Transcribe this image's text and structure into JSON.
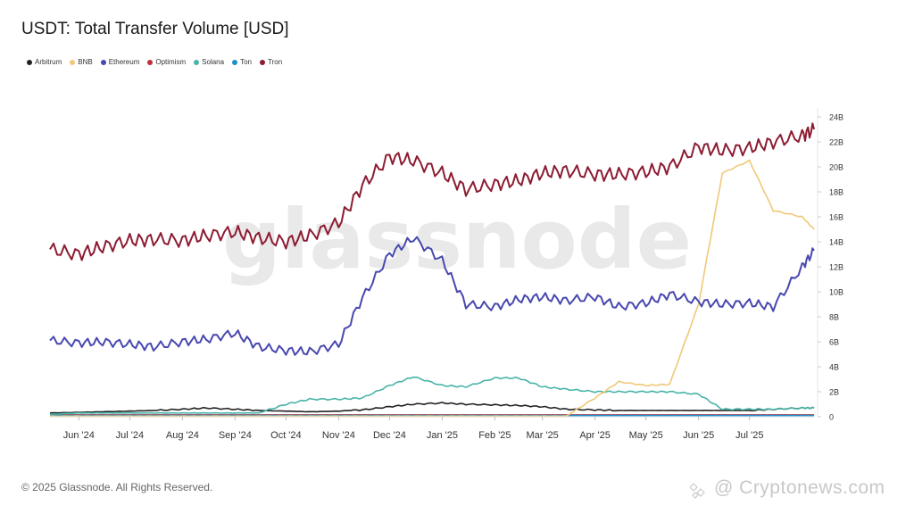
{
  "title": "USDT: Total Transfer Volume [USD]",
  "footer": "© 2025 Glassnode. All Rights Reserved.",
  "watermark": "glassnode",
  "watermark_bottom": "@ Cryptonews.com",
  "chart_data": {
    "type": "line",
    "title": "USDT: Total Transfer Volume [USD]",
    "legend_position": "top-left",
    "grid": false,
    "x": [
      "2024-05-15",
      "2024-06-01",
      "2024-06-15",
      "2024-07-01",
      "2024-07-15",
      "2024-08-01",
      "2024-08-15",
      "2024-09-01",
      "2024-09-15",
      "2024-10-01",
      "2024-10-15",
      "2024-11-01",
      "2024-11-15",
      "2024-12-01",
      "2024-12-15",
      "2025-01-01",
      "2025-01-15",
      "2025-02-01",
      "2025-02-15",
      "2025-03-01",
      "2025-03-15",
      "2025-04-01",
      "2025-04-15",
      "2025-05-01",
      "2025-05-15",
      "2025-06-01",
      "2025-06-15",
      "2025-07-01",
      "2025-07-15",
      "2025-08-01",
      "2025-08-08"
    ],
    "x_ticks": [
      "Jun '24",
      "Jul '24",
      "Aug '24",
      "Sep '24",
      "Oct '24",
      "Nov '24",
      "Dec '24",
      "Jan '25",
      "Feb '25",
      "Mar '25",
      "Apr '25",
      "May '25",
      "Jun '25",
      "Jul '25"
    ],
    "x_tick_dates": [
      "2024-06-01",
      "2024-07-01",
      "2024-08-01",
      "2024-09-01",
      "2024-10-01",
      "2024-11-01",
      "2024-12-01",
      "2025-01-01",
      "2025-02-01",
      "2025-03-01",
      "2025-04-01",
      "2025-05-01",
      "2025-06-01",
      "2025-07-01"
    ],
    "x_range": [
      "2024-05-15",
      "2025-08-08"
    ],
    "y_ticks": [
      "0",
      "2B",
      "4B",
      "6B",
      "8B",
      "10B",
      "12B",
      "14B",
      "16B",
      "18B",
      "20B",
      "22B",
      "24B"
    ],
    "ylim": [
      0,
      24
    ],
    "y_unit": "B",
    "y_axis_side": "right",
    "series": [
      {
        "name": "Arbitrum",
        "color": "#222222",
        "values": [
          0.3,
          0.35,
          0.4,
          0.45,
          0.5,
          0.6,
          0.7,
          0.6,
          0.5,
          0.45,
          0.4,
          0.45,
          0.55,
          0.8,
          1.0,
          1.1,
          1.0,
          0.95,
          0.9,
          0.8,
          0.6,
          0.55,
          0.5,
          0.5,
          0.5,
          0.5,
          0.5,
          0.5,
          0.6,
          0.7,
          0.7
        ]
      },
      {
        "name": "BNB",
        "color": "#f0c878",
        "values": [
          0.05,
          0.05,
          0.05,
          0.05,
          0.05,
          0.05,
          0.05,
          0.05,
          0.05,
          0.05,
          0.05,
          0.05,
          0.05,
          0.05,
          0.05,
          0.05,
          0.05,
          0.05,
          0.05,
          0.05,
          0.05,
          1.5,
          2.8,
          2.5,
          2.6,
          9.0,
          19.5,
          20.5,
          16.5,
          16.0,
          15.0
        ]
      },
      {
        "name": "Ethereum",
        "color": "#4848b0",
        "values": [
          6.1,
          5.9,
          6.0,
          5.8,
          5.6,
          6.0,
          6.2,
          6.7,
          5.6,
          5.3,
          5.2,
          5.8,
          9.5,
          13.0,
          14.3,
          12.5,
          9.0,
          8.8,
          9.4,
          9.6,
          9.3,
          9.6,
          8.8,
          9.1,
          9.8,
          9.2,
          9.0,
          9.1,
          8.8,
          12.0,
          13.3
        ]
      },
      {
        "name": "Optimism",
        "color": "#c0303a",
        "values": [
          0.15,
          0.15,
          0.15,
          0.15,
          0.15,
          0.15,
          0.15,
          0.15,
          0.15,
          0.15,
          0.15,
          0.15,
          0.15,
          0.15,
          0.15,
          0.15,
          0.15,
          0.15,
          0.15,
          0.15,
          0.15,
          0.15,
          0.15,
          0.15,
          0.15,
          0.15,
          0.15,
          0.15,
          0.15,
          0.15,
          0.15
        ]
      },
      {
        "name": "Solana",
        "color": "#48b4a8",
        "values": [
          0.2,
          0.3,
          0.3,
          0.3,
          0.3,
          0.3,
          0.3,
          0.3,
          0.3,
          1.0,
          1.4,
          1.4,
          1.5,
          2.5,
          3.2,
          2.5,
          2.4,
          3.1,
          3.1,
          2.4,
          2.2,
          2.0,
          2.0,
          2.0,
          2.0,
          1.8,
          0.6,
          0.6,
          0.6,
          0.7,
          0.7
        ]
      },
      {
        "name": "Ton",
        "color": "#2090c8",
        "values": [
          0.1,
          0.1,
          0.1,
          0.1,
          0.1,
          0.1,
          0.1,
          0.1,
          0.1,
          0.1,
          0.1,
          0.1,
          0.1,
          0.1,
          0.1,
          0.1,
          0.1,
          0.1,
          0.1,
          0.1,
          0.1,
          0.1,
          0.1,
          0.1,
          0.1,
          0.1,
          0.1,
          0.1,
          0.1,
          0.1,
          0.1
        ]
      },
      {
        "name": "Tron",
        "color": "#8c1c32",
        "values": [
          13.4,
          13.0,
          13.6,
          14.1,
          14.2,
          14.1,
          14.5,
          14.8,
          14.3,
          14.0,
          14.5,
          15.5,
          18.5,
          20.8,
          20.5,
          19.5,
          18.2,
          18.6,
          18.9,
          19.5,
          19.7,
          19.4,
          19.4,
          19.6,
          20.0,
          21.6,
          21.3,
          21.5,
          22.0,
          22.5,
          23.0
        ]
      }
    ]
  }
}
